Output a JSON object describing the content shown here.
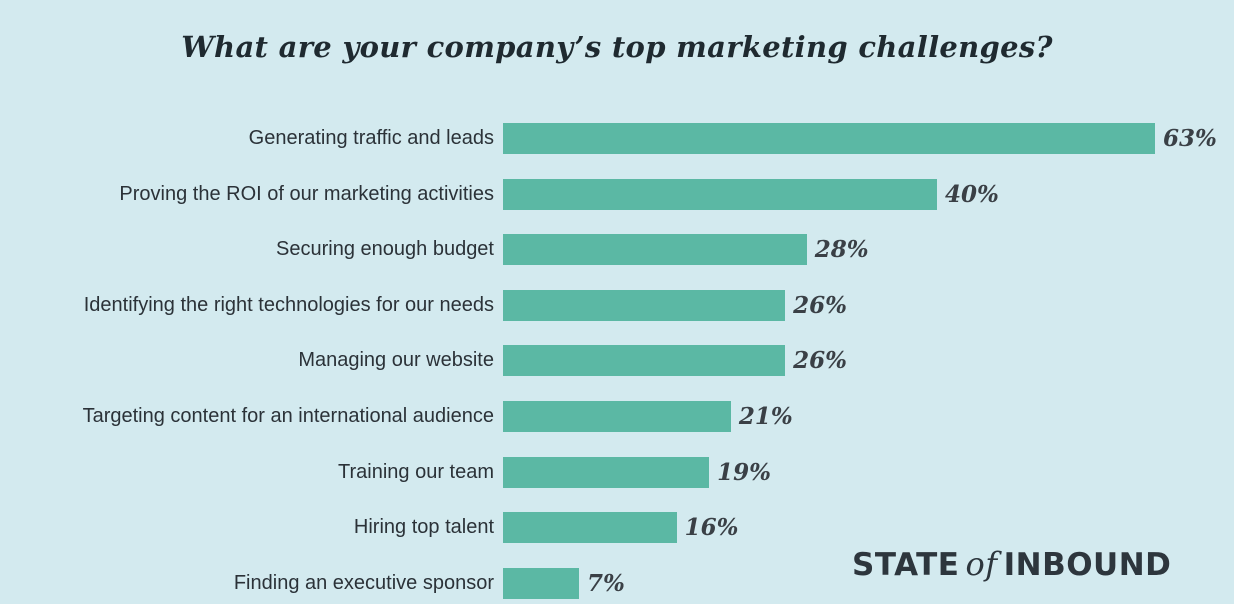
{
  "chart_data": {
    "type": "bar",
    "orientation": "horizontal",
    "title": "What are your company’s top marketing challenges?",
    "categories": [
      "Generating traffic and leads",
      "Proving the ROI of our marketing activities",
      "Securing enough budget",
      "Identifying the right technologies for our needs",
      "Managing our website",
      "Targeting content for an international audience",
      "Training our team",
      "Hiring top talent",
      "Finding an executive sponsor"
    ],
    "values": [
      63,
      40,
      28,
      26,
      26,
      21,
      19,
      16,
      7
    ],
    "value_labels": [
      "63%",
      "40%",
      "28%",
      "26%",
      "26%",
      "21%",
      "19%",
      "16%",
      "7%"
    ],
    "unit": "%",
    "grid": false,
    "legend": "none",
    "colors": {
      "bar": "#5bb8a4",
      "background": "#d3eaef",
      "text": "#2b3238"
    }
  },
  "logo": {
    "text": "STATE of INBOUND",
    "part1": "STATE",
    "part2": "of",
    "part3": "INBOUND"
  }
}
